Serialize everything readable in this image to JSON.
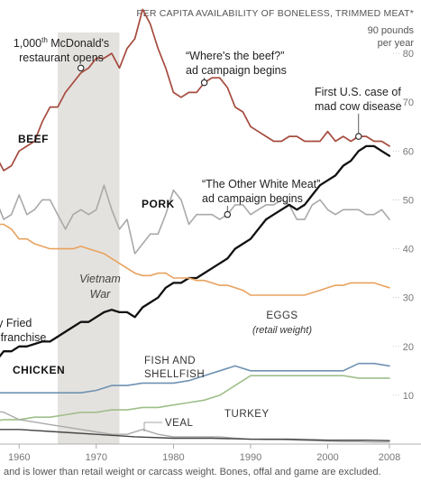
{
  "header": {
    "title": "PER CAPITA AVAILABILITY OF BONELESS, TRIMMED MEAT*",
    "unit_line1": "90 pounds",
    "unit_line2": "per year",
    "footnote": "and is lower than retail weight or carcass weight. Bones, offal and game are excluded."
  },
  "chart_data": {
    "type": "line",
    "x_ticks": [
      1960,
      1970,
      1980,
      1990,
      2000,
      2008
    ],
    "y_ticks": [
      10,
      20,
      30,
      40,
      50,
      60,
      70,
      80
    ],
    "xlim": [
      1956,
      2008
    ],
    "ylim": [
      0,
      90
    ],
    "grid": false,
    "shaded_period": {
      "label_line1": "Vietnam",
      "label_line2": "War",
      "from": 1965,
      "to": 1973
    },
    "series": [
      {
        "key": "beef",
        "name": "BEEF",
        "color": "#a54b3e",
        "width": 1.7,
        "x": [
          1956,
          1957,
          1958,
          1959,
          1960,
          1961,
          1962,
          1963,
          1964,
          1965,
          1966,
          1967,
          1968,
          1969,
          1970,
          1971,
          1972,
          1973,
          1974,
          1975,
          1976,
          1977,
          1978,
          1979,
          1980,
          1981,
          1982,
          1983,
          1984,
          1985,
          1986,
          1987,
          1988,
          1989,
          1990,
          1991,
          1992,
          1993,
          1994,
          1995,
          1996,
          1997,
          1998,
          1999,
          2000,
          2001,
          2002,
          2003,
          2004,
          2005,
          2006,
          2007,
          2008
        ],
        "y": [
          60,
          59,
          56,
          57,
          60,
          61,
          62,
          66,
          69,
          69,
          72,
          74,
          76,
          77,
          79,
          79,
          80,
          77,
          81,
          83,
          89,
          86,
          81,
          77,
          72,
          71,
          72,
          72,
          74,
          75,
          75,
          73,
          69,
          68,
          65,
          64,
          63,
          62,
          62,
          63,
          63,
          62,
          62,
          62,
          64,
          62,
          63,
          62,
          63,
          63,
          62,
          62,
          61
        ]
      },
      {
        "key": "pork",
        "name": "PORK",
        "color": "#a9a9a9",
        "width": 1.6,
        "x": [
          1956,
          1957,
          1958,
          1959,
          1960,
          1961,
          1962,
          1963,
          1964,
          1965,
          1966,
          1967,
          1968,
          1969,
          1970,
          1971,
          1972,
          1973,
          1974,
          1975,
          1976,
          1977,
          1978,
          1979,
          1980,
          1981,
          1982,
          1983,
          1984,
          1985,
          1986,
          1987,
          1988,
          1989,
          1990,
          1991,
          1992,
          1993,
          1994,
          1995,
          1996,
          1997,
          1998,
          1999,
          2000,
          2001,
          2002,
          2003,
          2004,
          2005,
          2006,
          2007,
          2008
        ],
        "y": [
          51,
          50,
          46,
          47,
          51,
          47,
          48,
          50,
          50,
          47,
          44,
          47,
          48,
          47,
          48,
          53,
          48,
          44,
          46,
          39,
          41,
          43,
          43,
          47,
          52,
          50,
          45,
          47,
          47,
          47,
          46,
          47,
          49,
          49,
          47,
          48,
          49,
          49,
          50,
          49,
          46,
          46,
          49,
          50,
          48,
          47,
          48,
          48,
          48,
          47,
          47,
          48,
          46
        ]
      },
      {
        "key": "chicken",
        "name": "CHICKEN",
        "color": "#111111",
        "width": 2.3,
        "x": [
          1956,
          1957,
          1958,
          1959,
          1960,
          1961,
          1962,
          1963,
          1964,
          1965,
          1966,
          1967,
          1968,
          1969,
          1970,
          1971,
          1972,
          1973,
          1974,
          1975,
          1976,
          1977,
          1978,
          1979,
          1980,
          1981,
          1982,
          1983,
          1984,
          1985,
          1986,
          1987,
          1988,
          1989,
          1990,
          1991,
          1992,
          1993,
          1994,
          1995,
          1996,
          1997,
          1998,
          1999,
          2000,
          2001,
          2002,
          2003,
          2004,
          2005,
          2006,
          2007,
          2008
        ],
        "y": [
          16,
          17,
          19,
          19,
          20,
          20,
          20.5,
          21,
          21,
          22,
          23,
          24,
          25,
          25,
          26,
          27,
          27.5,
          27,
          27,
          26,
          28,
          29,
          30,
          32,
          33,
          33,
          34,
          34,
          35,
          36,
          37,
          38,
          40,
          41,
          42,
          44,
          46,
          47,
          48,
          49,
          48,
          49,
          51,
          53,
          54,
          55,
          57,
          58,
          60,
          61,
          61,
          60,
          59
        ]
      },
      {
        "key": "eggs",
        "name": "EGGS",
        "color": "#e8a25e",
        "width": 1.6,
        "x": [
          1956,
          1957,
          1958,
          1959,
          1960,
          1961,
          1962,
          1963,
          1964,
          1965,
          1966,
          1967,
          1968,
          1969,
          1970,
          1971,
          1972,
          1973,
          1974,
          1975,
          1976,
          1977,
          1978,
          1979,
          1980,
          1981,
          1982,
          1983,
          1984,
          1985,
          1986,
          1987,
          1988,
          1989,
          1990,
          1991,
          1992,
          1993,
          1994,
          1995,
          1996,
          1997,
          1998,
          1999,
          2000,
          2001,
          2002,
          2003,
          2004,
          2005,
          2006,
          2007,
          2008
        ],
        "y": [
          46,
          45,
          45,
          44,
          42,
          42,
          41,
          40.5,
          40,
          40,
          40,
          40,
          40.5,
          40,
          39.5,
          39,
          38,
          37,
          36,
          35,
          34.5,
          34.5,
          35,
          35,
          34,
          34,
          34,
          33.5,
          33.5,
          33,
          32.5,
          32.5,
          32,
          31.5,
          30.5,
          30.5,
          30.5,
          30.5,
          30.5,
          30.5,
          30.5,
          30.5,
          31,
          31.5,
          32,
          32.5,
          32.5,
          33,
          33,
          33,
          33,
          32.5,
          32
        ]
      },
      {
        "key": "fish",
        "name": "FISH AND SHELLFISH",
        "color": "#6f92b2",
        "width": 1.6,
        "x": [
          1956,
          1958,
          1960,
          1962,
          1964,
          1966,
          1968,
          1970,
          1972,
          1974,
          1976,
          1978,
          1980,
          1982,
          1984,
          1986,
          1988,
          1990,
          1992,
          1994,
          1996,
          1998,
          2000,
          2002,
          2004,
          2006,
          2008
        ],
        "y": [
          10.5,
          10.5,
          10.5,
          10.5,
          10.5,
          10.5,
          10.5,
          11,
          12,
          12,
          12.5,
          12.5,
          12.5,
          13,
          14,
          15,
          16,
          15,
          15,
          15,
          15,
          15,
          15,
          15,
          16.5,
          16.5,
          16
        ]
      },
      {
        "key": "turkey",
        "name": "TURKEY",
        "color": "#9fbf8a",
        "width": 1.6,
        "x": [
          1956,
          1958,
          1960,
          1962,
          1964,
          1966,
          1968,
          1970,
          1972,
          1974,
          1976,
          1978,
          1980,
          1982,
          1984,
          1986,
          1988,
          1990,
          1992,
          1994,
          1996,
          1998,
          2000,
          2002,
          2004,
          2006,
          2008
        ],
        "y": [
          4.5,
          5,
          5,
          5.5,
          5.5,
          6,
          6.5,
          6.5,
          7,
          7,
          7.5,
          7.5,
          8,
          8.5,
          9,
          10,
          12,
          14,
          14,
          14,
          14,
          14,
          14,
          14,
          13.5,
          13.5,
          13.5
        ]
      },
      {
        "key": "veal",
        "name": "VEAL",
        "color": "#aaaaaa",
        "width": 1.4,
        "x": [
          1956,
          1958,
          1960,
          1962,
          1964,
          1966,
          1968,
          1970,
          1972,
          1974,
          1976,
          1978,
          1980,
          1982,
          1984,
          1986,
          1988,
          1990,
          1992,
          1994,
          1996,
          1998,
          2000,
          2002,
          2004,
          2006,
          2008
        ],
        "y": [
          7,
          6.5,
          5,
          4.5,
          4,
          3.5,
          3,
          2.5,
          2,
          2,
          3,
          2,
          1.5,
          1.5,
          1.5,
          1.5,
          1.2,
          1,
          0.9,
          0.9,
          0.8,
          0.7,
          0.6,
          0.5,
          0.5,
          0.4,
          0.4
        ]
      },
      {
        "key": "lamb",
        "name": "",
        "color": "#444444",
        "width": 1.4,
        "x": [
          1956,
          1960,
          1965,
          1970,
          1975,
          1980,
          1985,
          1990,
          1995,
          2000,
          2005,
          2008
        ],
        "y": [
          3,
          3,
          2.5,
          2,
          1.5,
          1.2,
          1.2,
          1,
          1,
          0.8,
          0.8,
          0.7
        ]
      }
    ],
    "annotations": [
      {
        "key": "mcdonalds",
        "text_line1_num": "1,000",
        "text_line1_sup": "th",
        "text_line1_rest": " McDonald's",
        "text_line2": "restaurant opens",
        "x": 1968,
        "y": 77
      },
      {
        "key": "beef_ad",
        "text_line1": "“Where's the beef?”",
        "text_line2": "ad campaign begins",
        "x": 1984,
        "y": 74
      },
      {
        "key": "mad_cow",
        "text_line1": "First U.S. case of",
        "text_line2": "mad cow disease",
        "x": 2004,
        "y": 63
      },
      {
        "key": "pork_ad",
        "text_line1": "“The Other White Meat”",
        "text_line2": "ad campaign begins",
        "x": 1987,
        "y": 47
      }
    ],
    "labels": {
      "beef": "BEEF",
      "pork": "PORK",
      "chicken": "CHICKEN",
      "kfc_line1": "Kentucky Fried",
      "kfc_line2": "Chicken franchise",
      "eggs": "EGGS",
      "eggs_sub": "(retail weight)",
      "fish_line1": "FISH AND",
      "fish_line2": "SHELLFISH",
      "turkey": "TURKEY",
      "veal": "VEAL"
    }
  }
}
